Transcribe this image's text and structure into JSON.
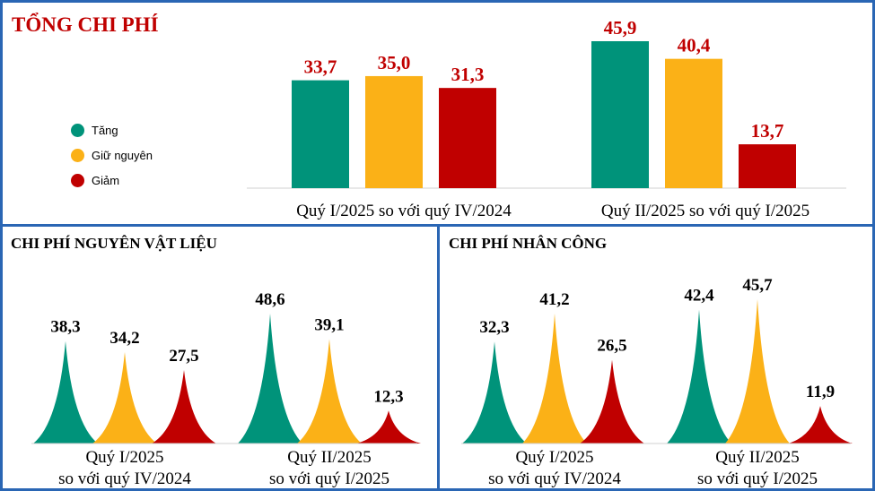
{
  "colors": {
    "tang": "#00937a",
    "giu": "#fbb117",
    "giam": "#c00000",
    "frame": "#2a66b4"
  },
  "legend": [
    {
      "label": "Tăng",
      "color": "#00937a"
    },
    {
      "label": "Giữ nguyên",
      "color": "#fbb117"
    },
    {
      "label": "Giảm",
      "color": "#c00000"
    }
  ],
  "chart_data": [
    {
      "type": "bar",
      "title": "TỔNG CHI PHÍ",
      "categories": [
        "Quý I/2025 so với quý IV/2024",
        "Quý II/2025 so với quý I/2025"
      ],
      "series": [
        {
          "name": "Tăng",
          "values": [
            "33,7",
            "45,9"
          ]
        },
        {
          "name": "Giữ nguyên",
          "values": [
            "35,0",
            "40,4"
          ]
        },
        {
          "name": "Giảm",
          "values": [
            "31,3",
            "13,7"
          ]
        }
      ]
    },
    {
      "type": "bar",
      "title": "CHI PHÍ NGUYÊN VẬT LIỆU",
      "categories": [
        [
          "Quý I/2025",
          "so với quý IV/2024"
        ],
        [
          "Quý II/2025",
          "so với quý I/2025"
        ]
      ],
      "series": [
        {
          "name": "Tăng",
          "values": [
            "38,3",
            "48,6"
          ]
        },
        {
          "name": "Giữ nguyên",
          "values": [
            "34,2",
            "39,1"
          ]
        },
        {
          "name": "Giảm",
          "values": [
            "27,5",
            "12,3"
          ]
        }
      ]
    },
    {
      "type": "bar",
      "title": "CHI PHÍ NHÂN CÔNG",
      "categories": [
        [
          "Quý I/2025",
          "so với quý IV/2024"
        ],
        [
          "Quý II/2025",
          "so với quý I/2025"
        ]
      ],
      "series": [
        {
          "name": "Tăng",
          "values": [
            "32,3",
            "42,4"
          ]
        },
        {
          "name": "Giữ nguyên",
          "values": [
            "41,2",
            "45,7"
          ]
        },
        {
          "name": "Giảm",
          "values": [
            "26,5",
            "11,9"
          ]
        }
      ]
    }
  ]
}
